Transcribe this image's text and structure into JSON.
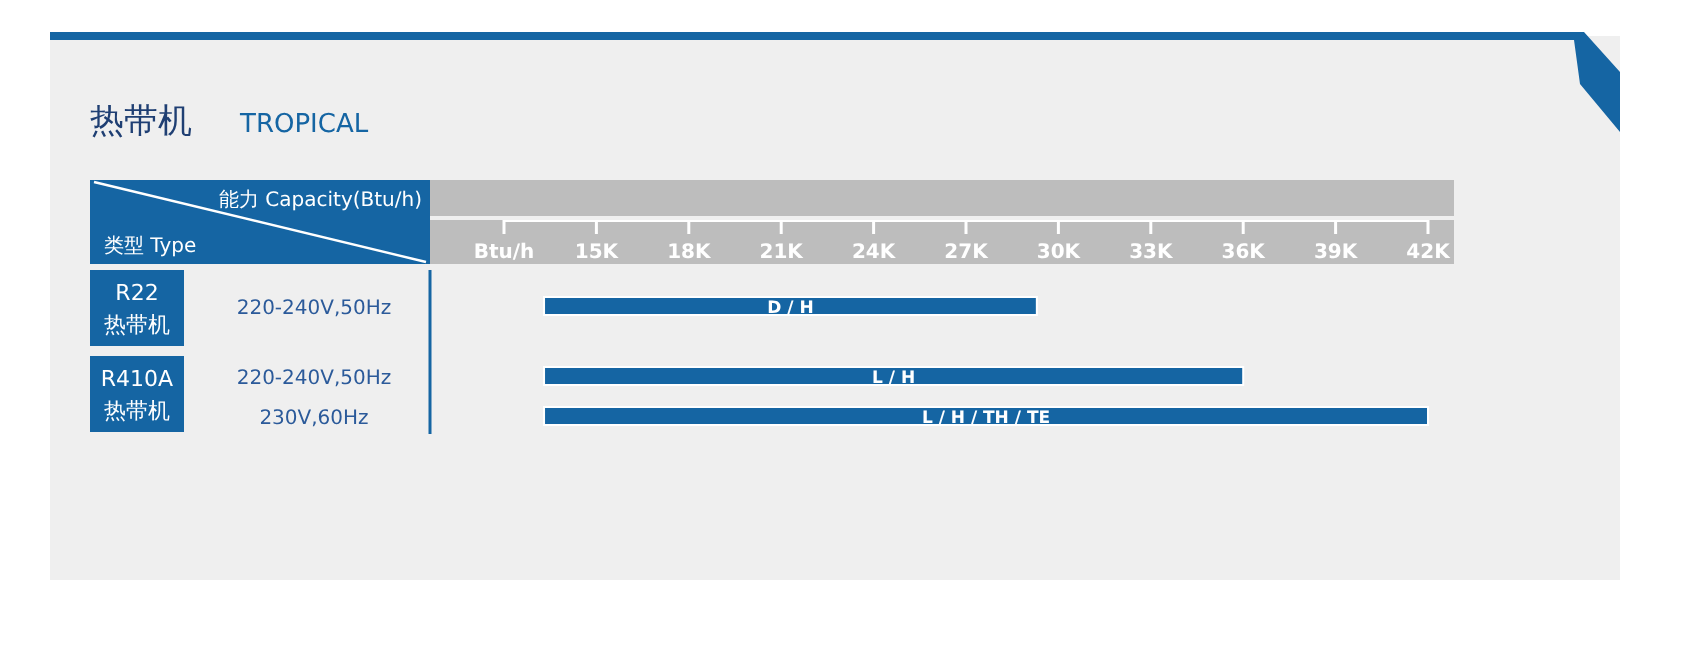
{
  "chart_data": {
    "type": "bar",
    "orientation": "horizontal",
    "title": "热带机",
    "subtitle": "TROPICAL",
    "xlabel": "能力 Capacity(Btu/h)",
    "ylabel": "类型 Type",
    "categories": [
      "220-240V,50Hz",
      "220-240V,50Hz",
      "230V,60Hz"
    ],
    "annotations": [
      "R22",
      "热带机",
      "R410A",
      "热带机"
    ],
    "base": [
      13.3,
      13.3,
      13.3
    ],
    "values": [
      16,
      22.7,
      28.7
    ],
    "value_labels": [
      "D / H",
      "L / H",
      "L / H / TH / TE"
    ],
    "color": "#1565a3",
    "xlim": [
      12,
      42
    ],
    "xticks": [
      {
        "value": 12,
        "label": "Btu/h"
      },
      {
        "value": 15,
        "label": "15K"
      },
      {
        "value": 18,
        "label": "18K"
      },
      {
        "value": 21,
        "label": "21K"
      },
      {
        "value": 24,
        "label": "24K"
      },
      {
        "value": 27,
        "label": "27K"
      },
      {
        "value": 30,
        "label": "30K"
      },
      {
        "value": 33,
        "label": "33K"
      },
      {
        "value": 36,
        "label": "36K"
      },
      {
        "value": 39,
        "label": "39K"
      },
      {
        "value": 42,
        "label": "42K"
      }
    ]
  }
}
